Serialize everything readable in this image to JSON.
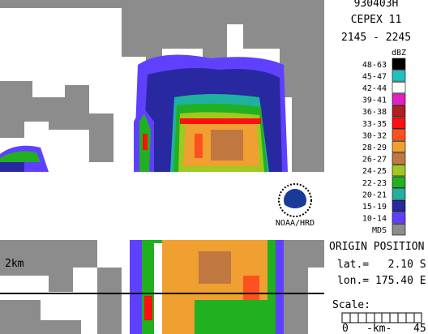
{
  "header": {
    "flight": "930403H",
    "experiment": "CEPEX 11",
    "time": "2145 - 2245"
  },
  "legend": {
    "title": "dBZ",
    "items": [
      {
        "label": "48-63",
        "color": "#000000"
      },
      {
        "label": "45-47",
        "color": "#20c0c0"
      },
      {
        "label": "42-44",
        "color": "#ffffff"
      },
      {
        "label": "39-41",
        "color": "#e020c0"
      },
      {
        "label": "36-38",
        "color": "#b02020"
      },
      {
        "label": "33-35",
        "color": "#ff1010"
      },
      {
        "label": "30-32",
        "color": "#ff5020"
      },
      {
        "label": "28-29",
        "color": "#f0a030"
      },
      {
        "label": "26-27",
        "color": "#c07840"
      },
      {
        "label": "24-25",
        "color": "#a0c820"
      },
      {
        "label": "22-23",
        "color": "#20b020"
      },
      {
        "label": "20-21",
        "color": "#20b0a0"
      },
      {
        "label": "15-19",
        "color": "#2828a0"
      },
      {
        "label": "10-14",
        "color": "#6040ff"
      },
      {
        "label": "MDS",
        "color": "#8c8c8c"
      }
    ]
  },
  "logo": {
    "label": "NOAA/HRD"
  },
  "origin": {
    "title": "ORIGIN POSITION",
    "lat": "lat.=   2.10 S",
    "lon": "lon.= 175.40 E"
  },
  "scale": {
    "title": "Scale:",
    "left": "0",
    "unit": "-km-",
    "right": "45"
  },
  "lower_panel": {
    "height_label": "2km"
  }
}
